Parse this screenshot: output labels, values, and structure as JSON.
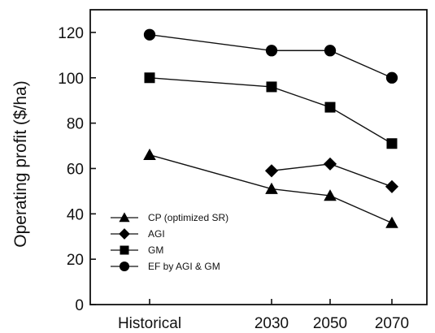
{
  "chart_data": {
    "type": "line",
    "categories": [
      "Historical",
      "2030",
      "2050",
      "2070"
    ],
    "ylabel": "Operating profit ($/ha)",
    "xlabel": "",
    "ylim": [
      0,
      130
    ],
    "yticks": [
      0,
      20,
      40,
      60,
      80,
      100,
      120
    ],
    "ytick_labels": [
      "0",
      "20",
      "40",
      "60",
      "80",
      "100",
      "120"
    ],
    "grid": false,
    "legend_position": "bottom-left",
    "series": [
      {
        "name": "CP (optimized SR)",
        "marker": "triangle",
        "values": [
          66,
          51,
          48,
          36
        ]
      },
      {
        "name": "AGI",
        "marker": "diamond",
        "values": [
          null,
          59,
          62,
          52
        ]
      },
      {
        "name": "GM",
        "marker": "square",
        "values": [
          100,
          96,
          87,
          71
        ]
      },
      {
        "name": "EF by AGI & GM",
        "marker": "circle",
        "values": [
          119,
          112,
          112,
          100
        ]
      }
    ],
    "colors": {
      "line": "#111111",
      "marker": "#000000"
    }
  }
}
